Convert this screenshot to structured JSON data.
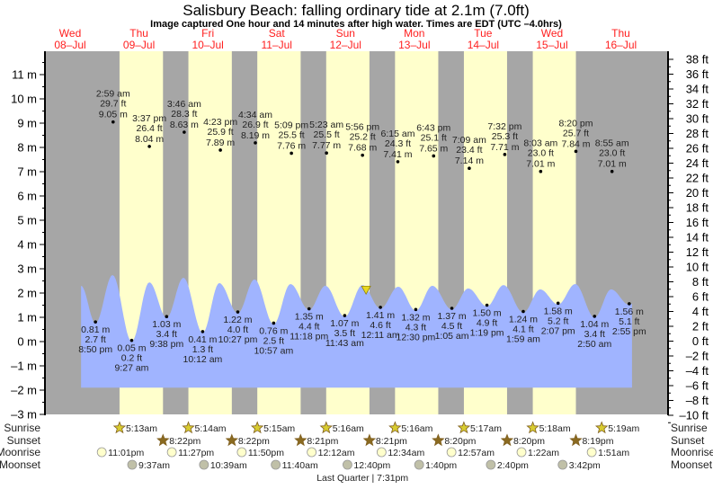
{
  "chart_data": {
    "type": "area",
    "title": "Salisbury Beach: falling  ordinary tide at 2.1m (7.0ft)",
    "subtitle": "Image captured One hour and 14 minutes after high water. Times are EDT (UTC –4.0hrs)",
    "time_unit": "hours since Wed 08-Jul 00:00",
    "xlim": [
      3.2,
      220.9
    ],
    "ylim_m": [
      -3,
      11.8
    ],
    "ylim_ft": [
      -10,
      38.5
    ],
    "days": [
      {
        "dow": "Wed",
        "date": "08–Jul"
      },
      {
        "dow": "Thu",
        "date": "09–Jul"
      },
      {
        "dow": "Fri",
        "date": "10–Jul"
      },
      {
        "dow": "Sat",
        "date": "11–Jul"
      },
      {
        "dow": "Sun",
        "date": "12–Jul"
      },
      {
        "dow": "Mon",
        "date": "13–Jul"
      },
      {
        "dow": "Tue",
        "date": "14–Jul"
      },
      {
        "dow": "Wed",
        "date": "15–Jul"
      },
      {
        "dow": "Thu",
        "date": "16–Jul"
      }
    ],
    "y_ticks_m": [
      "11 m",
      "10 m",
      "9 m",
      "8 m",
      "7 m",
      "6 m",
      "5 m",
      "4 m",
      "3 m",
      "2 m",
      "1 m",
      "0 m",
      "–1 m",
      "–2 m",
      "–3 m"
    ],
    "y_ticks_m_values": [
      11,
      10,
      9,
      8,
      7,
      6,
      5,
      4,
      3,
      2,
      1,
      0,
      -1,
      -2,
      -3
    ],
    "y_ticks_ft": [
      "38 ft",
      "36 ft",
      "34 ft",
      "32 ft",
      "30 ft",
      "28 ft",
      "26 ft",
      "24 ft",
      "22 ft",
      "20 ft",
      "18 ft",
      "16 ft",
      "14 ft",
      "12 ft",
      "10 ft",
      "8 ft",
      "6 ft",
      "4 ft",
      "2 ft",
      "0 ft",
      "–2 ft",
      "–4 ft",
      "–6 ft",
      "–8 ft",
      "–10 ft"
    ],
    "y_ticks_ft_values": [
      38,
      36,
      34,
      32,
      30,
      28,
      26,
      24,
      22,
      20,
      18,
      16,
      14,
      12,
      10,
      8,
      6,
      4,
      2,
      0,
      -2,
      -4,
      -6,
      -8,
      -10
    ],
    "daylight": [
      [
        29.22,
        44.37
      ],
      [
        53.23,
        68.37
      ],
      [
        77.25,
        92.37
      ],
      [
        101.27,
        116.35
      ],
      [
        125.27,
        140.35
      ],
      [
        149.28,
        164.33
      ],
      [
        173.3,
        188.33
      ]
    ],
    "curve_points": [
      [
        15.8,
        2.3
      ],
      [
        20.83,
        0.76
      ],
      [
        26.8,
        2.74
      ],
      [
        33.45,
        0.0
      ],
      [
        39.6,
        2.44
      ],
      [
        45.63,
        0.98
      ],
      [
        51.5,
        2.63
      ],
      [
        58.2,
        0.36
      ],
      [
        64.0,
        2.41
      ],
      [
        70.45,
        1.17
      ],
      [
        76.3,
        2.56
      ],
      [
        82.95,
        0.71
      ],
      [
        88.8,
        2.37
      ],
      [
        95.3,
        1.3
      ],
      [
        101.0,
        2.3
      ],
      [
        107.72,
        1.02
      ],
      [
        113.9,
        2.33
      ],
      [
        120.18,
        1.36
      ],
      [
        126.4,
        2.26
      ],
      [
        132.5,
        1.27
      ],
      [
        138.3,
        2.3
      ],
      [
        145.08,
        1.32
      ],
      [
        150.8,
        2.19
      ],
      [
        157.32,
        1.45
      ],
      [
        163.1,
        2.33
      ],
      [
        169.98,
        1.19
      ],
      [
        175.9,
        2.15
      ],
      [
        182.12,
        1.53
      ],
      [
        188.1,
        2.37
      ],
      [
        194.83,
        0.99
      ],
      [
        200.6,
        2.15
      ],
      [
        206.92,
        1.51
      ],
      [
        207.9,
        1.56
      ]
    ],
    "curve_base_m": -1.9,
    "now": {
      "t": 115.17,
      "m": 2.1
    },
    "highs": [
      {
        "t": 26.98,
        "time": "2:59 am",
        "ft": "29.7 ft",
        "m": 9.05,
        "m_label": "9.05 m"
      },
      {
        "t": 39.62,
        "time": "3:37 pm",
        "ft": "26.4 ft",
        "m": 8.04,
        "m_label": "8.04 m"
      },
      {
        "t": 51.77,
        "time": "3:46 am",
        "ft": "28.3 ft",
        "m": 8.63,
        "m_label": "8.63 m"
      },
      {
        "t": 64.38,
        "time": "4:23 pm",
        "ft": "25.9 ft",
        "m": 7.89,
        "m_label": "7.89 m"
      },
      {
        "t": 76.57,
        "time": "4:34 am",
        "ft": "26.9 ft",
        "m": 8.19,
        "m_label": "8.19 m"
      },
      {
        "t": 89.15,
        "time": "5:09 pm",
        "ft": "25.5 ft",
        "m": 7.76,
        "m_label": "7.76 m"
      },
      {
        "t": 101.38,
        "time": "5:23 am",
        "ft": "25.5 ft",
        "m": 7.77,
        "m_label": "7.77 m"
      },
      {
        "t": 113.93,
        "time": "5:56 pm",
        "ft": "25.2 ft",
        "m": 7.68,
        "m_label": "7.68 m"
      },
      {
        "t": 126.25,
        "time": "6:15 am",
        "ft": "24.3 ft",
        "m": 7.41,
        "m_label": "7.41 m"
      },
      {
        "t": 138.72,
        "time": "6:43 pm",
        "ft": "25.1 ft",
        "m": 7.65,
        "m_label": "7.65 m"
      },
      {
        "t": 151.15,
        "time": "7:09 am",
        "ft": "23.4 ft",
        "m": 7.14,
        "m_label": "7.14 m"
      },
      {
        "t": 163.53,
        "time": "7:32 pm",
        "ft": "25.3 ft",
        "m": 7.71,
        "m_label": "7.71 m"
      },
      {
        "t": 176.05,
        "time": "8:03 am",
        "ft": "23.0 ft",
        "m": 7.01,
        "m_label": "7.01 m"
      },
      {
        "t": 188.33,
        "time": "8:20 pm",
        "ft": "25.7 ft",
        "m": 7.84,
        "m_label": "7.84 m"
      },
      {
        "t": 200.92,
        "time": "8:55 am",
        "ft": "23.0 ft",
        "m": 7.01,
        "m_label": "7.01 m"
      }
    ],
    "lows": [
      {
        "t": 20.83,
        "time": "8:50 pm",
        "ft": "2.7 ft",
        "m": 0.81,
        "m_label": "0.81 m"
      },
      {
        "t": 33.45,
        "time": "9:27 am",
        "ft": "0.2 ft",
        "m": 0.05,
        "m_label": "0.05 m"
      },
      {
        "t": 45.63,
        "time": "9:38 pm",
        "ft": "3.4 ft",
        "m": 1.03,
        "m_label": "1.03 m"
      },
      {
        "t": 58.2,
        "time": "10:12 am",
        "ft": "1.3 ft",
        "m": 0.41,
        "m_label": "0.41 m"
      },
      {
        "t": 70.45,
        "time": "10:27 pm",
        "ft": "4.0 ft",
        "m": 1.22,
        "m_label": "1.22 m"
      },
      {
        "t": 82.95,
        "time": "10:57 am",
        "ft": "2.5 ft",
        "m": 0.76,
        "m_label": "0.76 m"
      },
      {
        "t": 95.3,
        "time": "11:18 pm",
        "ft": "4.4 ft",
        "m": 1.35,
        "m_label": "1.35 m"
      },
      {
        "t": 107.72,
        "time": "11:43 am",
        "ft": "3.5 ft",
        "m": 1.07,
        "m_label": "1.07 m"
      },
      {
        "t": 120.18,
        "time": "12:11 am",
        "ft": "4.6 ft",
        "m": 1.41,
        "m_label": "1.41 m"
      },
      {
        "t": 132.5,
        "time": "12:30 pm",
        "ft": "4.3 ft",
        "m": 1.32,
        "m_label": "1.32 m"
      },
      {
        "t": 145.08,
        "time": "1:05 am",
        "ft": "4.5 ft",
        "m": 1.37,
        "m_label": "1.37 m"
      },
      {
        "t": 157.32,
        "time": "1:19 pm",
        "ft": "4.9 ft",
        "m": 1.5,
        "m_label": "1.50 m"
      },
      {
        "t": 169.98,
        "time": "1:59 am",
        "ft": "4.1 ft",
        "m": 1.24,
        "m_label": "1.24 m"
      },
      {
        "t": 182.12,
        "time": "2:07 pm",
        "ft": "5.2 ft",
        "m": 1.58,
        "m_label": "1.58 m"
      },
      {
        "t": 194.83,
        "time": "2:50 am",
        "ft": "3.4 ft",
        "m": 1.04,
        "m_label": "1.04 m"
      },
      {
        "t": 206.92,
        "time": "2:55 pm",
        "ft": "5.1 ft",
        "m": 1.56,
        "m_label": "1.56 m"
      }
    ],
    "row_labels": {
      "sunrise": "Sunrise",
      "sunset": "Sunset",
      "moonrise": "Moonrise",
      "moonset": "Moonset"
    },
    "sunrise": [
      {
        "t": 29.22,
        "label": "5:13am"
      },
      {
        "t": 53.23,
        "label": "5:14am"
      },
      {
        "t": 77.25,
        "label": "5:15am"
      },
      {
        "t": 101.27,
        "label": "5:16am"
      },
      {
        "t": 125.27,
        "label": "5:16am"
      },
      {
        "t": 149.28,
        "label": "5:17am"
      },
      {
        "t": 173.3,
        "label": "5:18am"
      },
      {
        "t": 197.32,
        "label": "5:19am"
      }
    ],
    "sunset": [
      {
        "t": 44.37,
        "label": "8:22pm"
      },
      {
        "t": 68.37,
        "label": "8:22pm"
      },
      {
        "t": 92.35,
        "label": "8:21pm"
      },
      {
        "t": 116.35,
        "label": "8:21pm"
      },
      {
        "t": 140.33,
        "label": "8:20pm"
      },
      {
        "t": 164.33,
        "label": "8:20pm"
      },
      {
        "t": 188.32,
        "label": "8:19pm"
      }
    ],
    "moonrise": [
      {
        "t": 23.02,
        "label": "11:01pm"
      },
      {
        "t": 47.45,
        "label": "11:27pm"
      },
      {
        "t": 71.83,
        "label": "11:50pm"
      },
      {
        "t": 96.2,
        "label": "12:12am"
      },
      {
        "t": 120.57,
        "label": "12:34am"
      },
      {
        "t": 144.95,
        "label": "12:57am"
      },
      {
        "t": 169.37,
        "label": "1:22am"
      },
      {
        "t": 193.85,
        "label": "1:51am"
      }
    ],
    "moonset": [
      {
        "t": 33.62,
        "label": "9:37am"
      },
      {
        "t": 58.65,
        "label": "10:39am"
      },
      {
        "t": 83.67,
        "label": "11:40am"
      },
      {
        "t": 108.67,
        "label": "12:40pm"
      },
      {
        "t": 133.67,
        "label": "1:40pm"
      },
      {
        "t": 158.67,
        "label": "2:40pm"
      },
      {
        "t": 183.7,
        "label": "3:42pm"
      }
    ],
    "moon_phase": {
      "t": 115.5,
      "label": "Last Quarter | 7:31pm"
    },
    "colors": {
      "night": "#a6a6a6",
      "day": "#ffffcc",
      "water": "#a0b4ff",
      "day_label": "#ff2020",
      "sunrise": "#d8cc30",
      "sunset": "#8a6a20",
      "moonrise": "#ffffcc",
      "moonset": "#c0c0a8"
    }
  }
}
